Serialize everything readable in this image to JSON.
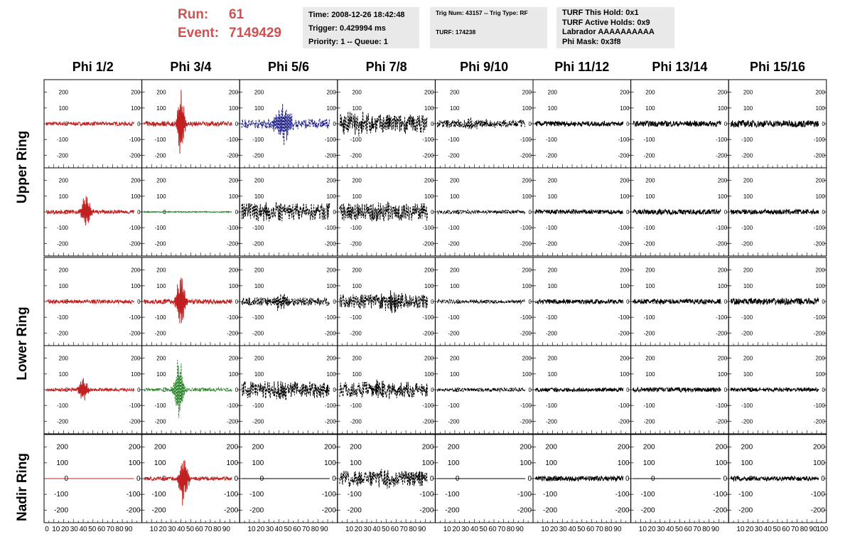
{
  "run": {
    "run_label": "Run:",
    "run_value": "61",
    "event_label": "Event:",
    "event_value": "7149429"
  },
  "info_time": {
    "line1": "Time: 2008-12-26 18:42:48",
    "line2": "Trigger: 0.429994 ms",
    "line3": "Priority: 1 -- Queue: 1"
  },
  "info_trig": {
    "line1": "Trig Num: 43157 -- Trig Type: RF",
    "line2": "TURF: 174238"
  },
  "info_turf": {
    "line1": "TURF This Hold: 0x1",
    "line2": "TURF Active Holds: 0x9",
    "line3": "Labrador AAAAAAAAAA",
    "line4": "Phi Mask: 0x3f8"
  },
  "chart_data": {
    "type": "line",
    "title": "",
    "columns": [
      "Phi 1/2",
      "Phi 3/4",
      "Phi 5/6",
      "Phi 7/8",
      "Phi 9/10",
      "Phi 11/12",
      "Phi 13/14",
      "Phi 15/16"
    ],
    "rows": [
      "Upper Ring",
      "Lower Ring",
      "Nadir Ring"
    ],
    "ylim": [
      -280,
      280
    ],
    "xlim": [
      0,
      100
    ],
    "yticks": [
      -200,
      -100,
      0,
      100,
      200
    ],
    "xticks": [
      "0",
      "10",
      "20",
      "30",
      "40",
      "50",
      "60",
      "70",
      "80",
      "90",
      "100"
    ],
    "colors": {
      "red": "#c02020",
      "green": "#208020",
      "blue": "#20208a",
      "black": "#000000"
    },
    "panels": [
      [
        {
          "color": "red",
          "style": "solid",
          "amp": 12,
          "pulse": 0,
          "t0": 0,
          "w": 0
        },
        {
          "color": "red",
          "style": "solid",
          "amp": 15,
          "pulse": 250,
          "t0": 42,
          "w": 8
        },
        {
          "color": "blue",
          "style": "dashed",
          "amp": 30,
          "pulse": 130,
          "t0": 48,
          "w": 18
        },
        {
          "color": "black",
          "style": "dashed",
          "amp": 60,
          "pulse": 40,
          "t0": 20,
          "w": 30
        },
        {
          "color": "black",
          "style": "dashed",
          "amp": 25,
          "pulse": 20,
          "t0": 40,
          "w": 20
        },
        {
          "color": "black",
          "style": "solid",
          "amp": 16,
          "pulse": 0,
          "t0": 0,
          "w": 0
        },
        {
          "color": "black",
          "style": "solid",
          "amp": 18,
          "pulse": 0,
          "t0": 0,
          "w": 0
        },
        {
          "color": "black",
          "style": "solid",
          "amp": 22,
          "pulse": 0,
          "t0": 0,
          "w": 0
        }
      ],
      [
        {
          "color": "red",
          "style": "solid",
          "amp": 12,
          "pulse": 130,
          "t0": 45,
          "w": 10
        },
        {
          "color": "green",
          "style": "solid",
          "amp": 3,
          "pulse": 0,
          "t0": 0,
          "w": 0
        },
        {
          "color": "black",
          "style": "dashed",
          "amp": 55,
          "pulse": 20,
          "t0": 40,
          "w": 30
        },
        {
          "color": "black",
          "style": "dashed",
          "amp": 55,
          "pulse": 20,
          "t0": 50,
          "w": 30
        },
        {
          "color": "black",
          "style": "dashed",
          "amp": 12,
          "pulse": 0,
          "t0": 0,
          "w": 0
        },
        {
          "color": "black",
          "style": "solid",
          "amp": 14,
          "pulse": 0,
          "t0": 0,
          "w": 0
        },
        {
          "color": "black",
          "style": "solid",
          "amp": 16,
          "pulse": 0,
          "t0": 0,
          "w": 0
        },
        {
          "color": "black",
          "style": "solid",
          "amp": 16,
          "pulse": 0,
          "t0": 0,
          "w": 0
        }
      ],
      [
        {
          "color": "red",
          "style": "solid",
          "amp": 12,
          "pulse": 0,
          "t0": 0,
          "w": 0
        },
        {
          "color": "red",
          "style": "solid",
          "amp": 15,
          "pulse": 200,
          "t0": 42,
          "w": 10
        },
        {
          "color": "black",
          "style": "dashed",
          "amp": 25,
          "pulse": 50,
          "t0": 45,
          "w": 20
        },
        {
          "color": "black",
          "style": "dashed",
          "amp": 45,
          "pulse": 40,
          "t0": 60,
          "w": 25
        },
        {
          "color": "black",
          "style": "dashed",
          "amp": 12,
          "pulse": 0,
          "t0": 0,
          "w": 0
        },
        {
          "color": "black",
          "style": "solid",
          "amp": 14,
          "pulse": 0,
          "t0": 0,
          "w": 0
        },
        {
          "color": "black",
          "style": "solid",
          "amp": 16,
          "pulse": 0,
          "t0": 0,
          "w": 0
        },
        {
          "color": "black",
          "style": "solid",
          "amp": 20,
          "pulse": 0,
          "t0": 0,
          "w": 0
        }
      ],
      [
        {
          "color": "red",
          "style": "solid",
          "amp": 10,
          "pulse": 80,
          "t0": 42,
          "w": 10
        },
        {
          "color": "green",
          "style": "dashed",
          "amp": 12,
          "pulse": 210,
          "t0": 40,
          "w": 10
        },
        {
          "color": "black",
          "style": "dashed",
          "amp": 55,
          "pulse": 40,
          "t0": 45,
          "w": 30
        },
        {
          "color": "black",
          "style": "dashed",
          "amp": 50,
          "pulse": 20,
          "t0": 50,
          "w": 30
        },
        {
          "color": "black",
          "style": "dashed",
          "amp": 12,
          "pulse": 0,
          "t0": 0,
          "w": 0
        },
        {
          "color": "black",
          "style": "solid",
          "amp": 12,
          "pulse": 0,
          "t0": 0,
          "w": 0
        },
        {
          "color": "black",
          "style": "solid",
          "amp": 14,
          "pulse": 0,
          "t0": 0,
          "w": 0
        },
        {
          "color": "black",
          "style": "solid",
          "amp": 12,
          "pulse": 0,
          "t0": 0,
          "w": 0
        }
      ],
      [
        {
          "color": "red",
          "style": "solid",
          "amp": 0,
          "pulse": 0,
          "t0": 0,
          "w": 0
        },
        {
          "color": "red",
          "style": "solid",
          "amp": 12,
          "pulse": 190,
          "t0": 45,
          "w": 10
        },
        {
          "color": "black",
          "style": "solid",
          "amp": 0,
          "pulse": 0,
          "t0": 0,
          "w": 0
        },
        {
          "color": "black",
          "style": "dashed",
          "amp": 50,
          "pulse": 30,
          "t0": 55,
          "w": 30
        },
        {
          "color": "black",
          "style": "solid",
          "amp": 0,
          "pulse": 0,
          "t0": 0,
          "w": 0
        },
        {
          "color": "black",
          "style": "solid",
          "amp": 16,
          "pulse": 0,
          "t0": 0,
          "w": 0
        },
        {
          "color": "black",
          "style": "solid",
          "amp": 0,
          "pulse": 0,
          "t0": 0,
          "w": 0
        },
        {
          "color": "black",
          "style": "solid",
          "amp": 14,
          "pulse": 0,
          "t0": 0,
          "w": 0
        }
      ]
    ]
  }
}
